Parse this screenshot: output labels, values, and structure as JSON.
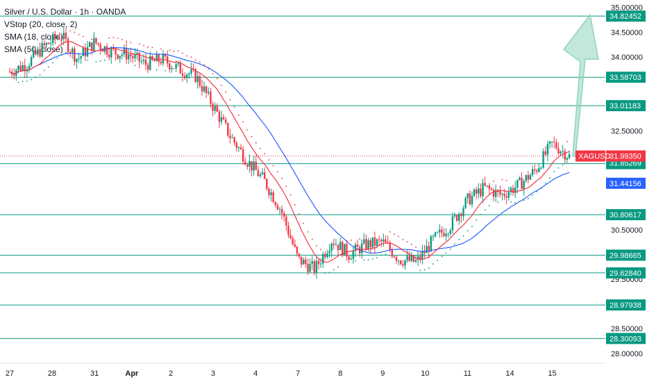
{
  "legend": {
    "title": "Silver / U.S. Dollar · 1h · OANDA",
    "vstop": "VStop (20, close, 2)",
    "sma18": "SMA (18, close)",
    "sma50": "SMA (50, close)"
  },
  "colors": {
    "up": "#089981",
    "down": "#f23645",
    "sma18": "#f23645",
    "sma50": "#2962ff",
    "level": "#089981",
    "arrow": "#8fd4bd",
    "price_badge": "#f23645",
    "sma50_badge": "#2962ff"
  },
  "chart_data": {
    "type": "candlestick",
    "symbol": "XAGUSD",
    "ylim": [
      27.8,
      35.15
    ],
    "y_ticks": [
      "35.00000",
      "34.50000",
      "34.00000",
      "32.50000",
      "30.50000",
      "29.50000",
      "28.50000",
      "28.00000"
    ],
    "x_ticks": [
      "27",
      "28",
      "31",
      "Apr",
      "2",
      "3",
      "4",
      "7",
      "8",
      "9",
      "10",
      "11",
      "14",
      "15"
    ],
    "levels": [
      34.82452,
      33.58703,
      33.01183,
      31.8389,
      30.80617,
      29.98665,
      29.6284,
      28.97938,
      28.30093
    ],
    "level_labels": [
      "34.82452",
      "33.58703",
      "33.01183",
      "31.83890",
      "30.80617",
      "29.98665",
      "29.62840",
      "28.97938",
      "28.30093"
    ],
    "current_price": {
      "symbol": "XAGUSD",
      "value": "31.99350",
      "y": 31.9935
    },
    "indicator_labels": [
      {
        "value": "31.99208",
        "y": 31.99208,
        "kind": "sma18"
      },
      {
        "value": "31.85269",
        "y": 31.85269,
        "kind": "vstop"
      },
      {
        "value": "31.44156",
        "y": 31.44156,
        "kind": "sma50"
      }
    ],
    "price_path": [
      [
        0,
        33.7
      ],
      [
        1,
        33.85
      ],
      [
        2,
        34.2
      ],
      [
        3,
        34.45
      ],
      [
        4,
        33.95
      ],
      [
        5,
        34.3
      ],
      [
        6,
        34.1
      ],
      [
        7,
        34.05
      ],
      [
        8,
        33.85
      ],
      [
        9,
        33.95
      ],
      [
        10,
        33.75
      ],
      [
        11,
        33.6
      ],
      [
        12,
        33.0
      ],
      [
        13,
        32.4
      ],
      [
        14,
        31.9
      ],
      [
        15,
        31.5
      ],
      [
        16,
        30.9
      ],
      [
        17,
        29.9
      ],
      [
        18,
        29.7
      ],
      [
        19,
        30.3
      ],
      [
        20,
        30.0
      ],
      [
        21,
        30.2
      ],
      [
        22,
        30.25
      ],
      [
        23,
        29.9
      ],
      [
        24,
        29.85
      ],
      [
        25,
        30.3
      ],
      [
        26,
        30.6
      ],
      [
        27,
        31.1
      ],
      [
        28,
        31.35
      ],
      [
        29,
        31.2
      ],
      [
        30,
        31.4
      ],
      [
        31,
        31.7
      ],
      [
        32,
        32.25
      ],
      [
        33,
        31.99
      ]
    ],
    "arrow": {
      "from": [
        33.4,
        31.99
      ],
      "to": [
        35.2,
        34.85
      ]
    },
    "x_day_index": {
      "27": 0,
      "28": 2.5,
      "31": 5,
      "Apr": 7.2,
      "2": 9.5,
      "3": 12,
      "4": 14.5,
      "7": 17,
      "8": 19.5,
      "9": 22,
      "10": 24.5,
      "11": 27,
      "14": 29.5,
      "15": 32
    }
  }
}
